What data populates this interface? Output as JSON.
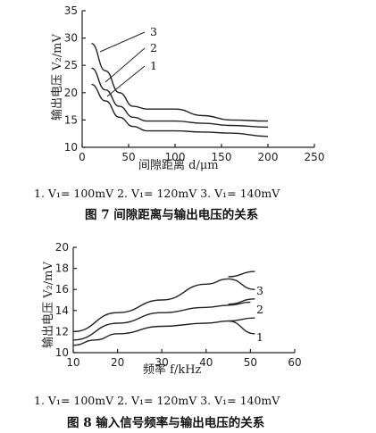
{
  "chart_data": [
    {
      "type": "line",
      "xlabel": "间隙距离 d/μm",
      "ylabel": "输出电压 V₂/mV",
      "xlim": [
        0,
        250
      ],
      "ylim": [
        10,
        35
      ],
      "xticks": [
        "0",
        "50",
        "100",
        "150",
        "200",
        "250"
      ],
      "yticks": [
        "10",
        "15",
        "20",
        "25",
        "30",
        "35"
      ],
      "series": [
        {
          "name": "1",
          "x": [
            10,
            25,
            40,
            55,
            70,
            100,
            130,
            160,
            200
          ],
          "y": [
            21.5,
            18.5,
            15.5,
            13.8,
            13.0,
            13.0,
            12.8,
            12.6,
            12.0
          ]
        },
        {
          "name": "2",
          "x": [
            10,
            25,
            40,
            55,
            70,
            100,
            130,
            160,
            200
          ],
          "y": [
            24.5,
            20.5,
            17.5,
            15.5,
            14.8,
            14.8,
            14.4,
            14.0,
            13.7
          ]
        },
        {
          "name": "3",
          "x": [
            10,
            25,
            40,
            55,
            70,
            100,
            130,
            160,
            200
          ],
          "y": [
            29.0,
            24.0,
            20.0,
            17.5,
            17.0,
            17.0,
            15.8,
            15.0,
            14.8
          ]
        }
      ],
      "legend_caption": "1. V₁= 100mV   2. V₁= 120mV   3. V₁= 140mV",
      "title": "图 7   间隙距离与输出电压的关系"
    },
    {
      "type": "line",
      "xlabel": "频率 f/kHz",
      "ylabel": "输出电压 V₂/mV",
      "xlim": [
        10,
        60
      ],
      "ylim": [
        10,
        20
      ],
      "xticks": [
        "10",
        "20",
        "30",
        "40",
        "50",
        "60"
      ],
      "yticks": [
        "10",
        "12",
        "14",
        "16",
        "18",
        "20"
      ],
      "series": [
        {
          "name": "1",
          "x": [
            10,
            15,
            20,
            30,
            40,
            45,
            51
          ],
          "y": [
            10.7,
            11.2,
            11.8,
            12.5,
            12.8,
            13.0,
            11.8
          ]
        },
        {
          "name": "2",
          "x": [
            10,
            20,
            30,
            40,
            45,
            50
          ],
          "y": [
            11.2,
            12.8,
            13.8,
            14.3,
            14.5,
            14.8
          ]
        },
        {
          "name": "3",
          "x": [
            10,
            20,
            30,
            40,
            45,
            51
          ],
          "y": [
            12.0,
            13.8,
            15.0,
            16.5,
            17.0,
            16.0
          ]
        },
        {
          "name": "",
          "x": [
            45,
            51
          ],
          "y": [
            13.0,
            13.3
          ]
        },
        {
          "name": "",
          "x": [
            45,
            51
          ],
          "y": [
            14.6,
            15.1
          ]
        },
        {
          "name": "",
          "x": [
            45,
            51
          ],
          "y": [
            17.2,
            17.7
          ]
        }
      ],
      "legend_caption": "1. V₁= 100mV   2. V₁= 120mV   3. V₁= 140mV",
      "title": "图 8   输入信号频率与输出电压的关系"
    }
  ]
}
